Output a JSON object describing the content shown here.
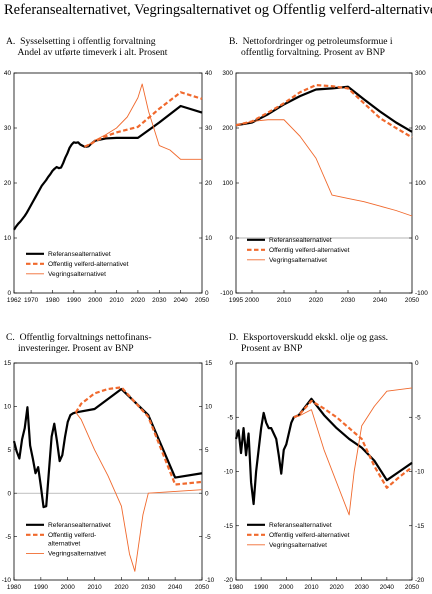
{
  "figure_title": "Referansealternativet, Vegringsalternativet og Offentlig velferd-alternativet",
  "colors": {
    "ref": "#000000",
    "velferd": "#f0692d",
    "vegring": "#f0692d",
    "zero": "#9a9a9a"
  },
  "legend_labels": {
    "ref": "Referansealternativet",
    "velferd": "Offentlig velferd-alternativet",
    "vegring": "Vegringsalternativet"
  },
  "panels": [
    {
      "title_lines": [
        "A.  Sysselsetting i offentlig forvaltning",
        "     Andel av utførte timeverk i alt. Prosent"
      ]
    },
    {
      "title_lines": [
        "B.  Nettofordringer og petroleumsformue i",
        "     offentlig forvaltning. Prosent av BNP"
      ]
    },
    {
      "title_lines": [
        "C.  Offentlig forvaltnings nettofinans-",
        "     investeringer. Prosent av BNP"
      ]
    },
    {
      "title_lines": [
        "D.  Eksportoverskudd ekskl. olje og gass.",
        "     Prosent av BNP"
      ]
    }
  ],
  "chart_data": [
    {
      "type": "line",
      "title": "A. Sysselsetting i offentlig forvaltning. Andel av utførte timeverk i alt. Prosent",
      "xlim": [
        1962,
        2050
      ],
      "ylim": [
        0,
        40
      ],
      "xticks": [
        1962,
        1970,
        1980,
        1990,
        2000,
        2010,
        2020,
        2030,
        2040,
        2050
      ],
      "xtick_labels": [
        "1962",
        "1970",
        "1980",
        "1990",
        "2000",
        "2010",
        "2020",
        "2030",
        "2040",
        "2050"
      ],
      "yticks": [
        0,
        10,
        20,
        30,
        40
      ],
      "right_axis": true,
      "zero_line": false,
      "legend_lines": [
        "Referansealternativet",
        "Offentlig velferd-alternativet",
        "Vegringsalternativet"
      ],
      "series": [
        {
          "name": "Referansealternativet",
          "key": "ref",
          "x": [
            1962,
            1963,
            1964,
            1965,
            1966,
            1967,
            1968,
            1969,
            1970,
            1971,
            1972,
            1973,
            1974,
            1975,
            1976,
            1977,
            1978,
            1979,
            1980,
            1981,
            1982,
            1983,
            1984,
            1985,
            1986,
            1987,
            1988,
            1989,
            1990,
            1991,
            1992,
            1993,
            1994,
            1995,
            1996,
            1997,
            1998,
            1999,
            2000,
            2005,
            2010,
            2020,
            2030,
            2040,
            2050
          ],
          "y": [
            11.5,
            12.1,
            12.6,
            13.0,
            13.5,
            14.0,
            14.6,
            15.3,
            16.0,
            16.7,
            17.4,
            18.1,
            18.8,
            19.5,
            20.0,
            20.5,
            21.1,
            21.6,
            22.2,
            22.6,
            22.9,
            22.7,
            22.8,
            23.6,
            24.6,
            25.4,
            26.4,
            27.0,
            27.4,
            27.3,
            27.4,
            27.0,
            26.8,
            26.6,
            26.6,
            26.7,
            27.1,
            27.4,
            27.7,
            28.1,
            28.2,
            28.2,
            31.0,
            34.0,
            32.8
          ]
        },
        {
          "name": "Offentlig velferd-alternativet",
          "key": "velferd",
          "x": [
            1995,
            1998,
            2000,
            2005,
            2010,
            2020,
            2030,
            2040,
            2050
          ],
          "y": [
            26.6,
            27.1,
            27.6,
            28.5,
            29.2,
            30.2,
            33.5,
            36.5,
            35.3
          ]
        },
        {
          "name": "Vegringsalternativet",
          "key": "vegring",
          "x": [
            1995,
            1998,
            2000,
            2005,
            2010,
            2015,
            2020,
            2022,
            2025,
            2030,
            2035,
            2040,
            2050
          ],
          "y": [
            26.6,
            27.2,
            27.8,
            28.8,
            30.0,
            32.0,
            35.5,
            38.0,
            33.0,
            26.8,
            26.0,
            24.3,
            24.3
          ]
        }
      ]
    },
    {
      "type": "line",
      "title": "B. Nettofordringer og petroleumsformue i offentlig forvaltning. Prosent av BNP",
      "xlim": [
        1995,
        2050
      ],
      "ylim": [
        -100,
        300
      ],
      "xticks": [
        1995,
        2000,
        2010,
        2020,
        2030,
        2040,
        2050
      ],
      "xtick_labels": [
        "1995",
        "2000",
        "2010",
        "2020",
        "2030",
        "2040",
        "2050"
      ],
      "yticks": [
        -100,
        0,
        100,
        200,
        300
      ],
      "right_axis": true,
      "zero_line": true,
      "legend_lines": [
        "Referansealternativet",
        "Offentlig velferd-alternativet",
        "Vegringsalternativet"
      ],
      "series": [
        {
          "name": "Referansealternativet",
          "key": "ref",
          "x": [
            1995,
            2000,
            2005,
            2010,
            2015,
            2020,
            2025,
            2030,
            2035,
            2040,
            2045,
            2050
          ],
          "y": [
            205,
            210,
            225,
            243,
            258,
            270,
            272,
            275,
            252,
            230,
            210,
            193
          ]
        },
        {
          "name": "Offentlig velferd-alternativet",
          "key": "velferd",
          "x": [
            1995,
            2000,
            2005,
            2010,
            2015,
            2020,
            2025,
            2030,
            2035,
            2040,
            2045,
            2050
          ],
          "y": [
            205,
            212,
            228,
            245,
            265,
            278,
            276,
            272,
            245,
            218,
            200,
            183
          ]
        },
        {
          "name": "Vegringsalternativet",
          "key": "vegring",
          "x": [
            1995,
            2000,
            2005,
            2010,
            2015,
            2020,
            2025,
            2030,
            2035,
            2040,
            2045,
            2050
          ],
          "y": [
            205,
            212,
            215,
            215,
            185,
            145,
            78,
            72,
            66,
            58,
            50,
            40
          ]
        }
      ]
    },
    {
      "type": "line",
      "title": "C. Offentlig forvaltnings nettofinans-investeringer. Prosent av BNP",
      "xlim": [
        1980,
        2050
      ],
      "ylim": [
        -10,
        15
      ],
      "xticks": [
        1980,
        1990,
        2000,
        2010,
        2020,
        2030,
        2040,
        2050
      ],
      "xtick_labels": [
        "1980",
        "1990",
        "2000",
        "2010",
        "2020",
        "2030",
        "2040",
        "2050"
      ],
      "yticks": [
        -10,
        -5,
        0,
        5,
        10,
        15
      ],
      "right_axis": true,
      "zero_line": true,
      "legend_lines": [
        "Referansealternativet",
        "Offentlig velferd-",
        "alternativet",
        "Vegringsalternativet"
      ],
      "series": [
        {
          "name": "Referansealternativet",
          "key": "ref",
          "x": [
            1980,
            1981,
            1982,
            1983,
            1984,
            1985,
            1986,
            1987,
            1988,
            1989,
            1990,
            1991,
            1992,
            1993,
            1994,
            1995,
            1996,
            1997,
            1998,
            1999,
            2000,
            2001,
            2002,
            2003,
            2010,
            2020,
            2030,
            2040,
            2050
          ],
          "y": [
            6.0,
            4.8,
            4.0,
            6.2,
            7.5,
            9.9,
            5.5,
            4.0,
            2.3,
            3.0,
            0.8,
            -1.6,
            -1.5,
            2.5,
            6.5,
            8.0,
            6.0,
            3.7,
            4.4,
            6.5,
            8.2,
            9.0,
            9.2,
            9.3,
            9.7,
            12.0,
            9.0,
            1.8,
            2.3
          ]
        },
        {
          "name": "Offentlig velferd-alternativet",
          "key": "velferd",
          "x": [
            2003,
            2005,
            2010,
            2015,
            2020,
            2030,
            2040,
            2050
          ],
          "y": [
            9.3,
            10.3,
            11.5,
            12.0,
            12.2,
            8.8,
            1.0,
            1.3
          ]
        },
        {
          "name": "Vegringsalternativet",
          "key": "vegring",
          "x": [
            2003,
            2005,
            2010,
            2015,
            2020,
            2023,
            2025,
            2028,
            2030,
            2040,
            2050
          ],
          "y": [
            9.3,
            8.5,
            5.0,
            2.0,
            -1.5,
            -7.0,
            -9.0,
            -2.5,
            0.0,
            0.2,
            0.4
          ]
        }
      ]
    },
    {
      "type": "line",
      "title": "D. Eksportoverskudd ekskl. olje og gass. Prosent av BNP",
      "xlim": [
        1980,
        2050
      ],
      "ylim": [
        -20,
        0
      ],
      "xticks": [
        1980,
        1990,
        2000,
        2010,
        2020,
        2030,
        2040,
        2050
      ],
      "xtick_labels": [
        "1980",
        "1990",
        "2000",
        "2010",
        "2020",
        "2030",
        "2040",
        "2050"
      ],
      "yticks": [
        -20,
        -15,
        -10,
        -5,
        0
      ],
      "right_axis": true,
      "zero_line": false,
      "legend_lines": [
        "Referansealternativet",
        "Offentlig velferd-alternativet",
        "Vegringsalternativet"
      ],
      "series": [
        {
          "name": "Referansealternativet",
          "key": "ref",
          "x": [
            1980,
            1981,
            1982,
            1983,
            1984,
            1985,
            1986,
            1987,
            1988,
            1989,
            1990,
            1991,
            1992,
            1993,
            1994,
            1995,
            1996,
            1997,
            1998,
            1999,
            2000,
            2001,
            2002,
            2003,
            2005,
            2010,
            2015,
            2020,
            2025,
            2030,
            2035,
            2040,
            2045,
            2050
          ],
          "y": [
            -7.0,
            -6.2,
            -8.3,
            -6.0,
            -8.5,
            -6.5,
            -11.0,
            -13.0,
            -10.0,
            -8.0,
            -6.0,
            -4.6,
            -5.5,
            -6.0,
            -6.0,
            -6.5,
            -7.0,
            -8.5,
            -10.2,
            -8.0,
            -7.5,
            -6.5,
            -5.5,
            -5.0,
            -4.8,
            -3.3,
            -4.8,
            -6.0,
            -7.0,
            -7.8,
            -9.0,
            -10.8,
            -10.0,
            -9.2
          ]
        },
        {
          "name": "Offentlig velferd-alternativet",
          "key": "velferd",
          "x": [
            2003,
            2005,
            2010,
            2015,
            2020,
            2025,
            2030,
            2035,
            2040,
            2045,
            2050
          ],
          "y": [
            -5.0,
            -4.8,
            -3.5,
            -4.2,
            -5.0,
            -6.0,
            -7.0,
            -9.5,
            -11.5,
            -10.5,
            -9.6
          ]
        },
        {
          "name": "Vegringsalternativet",
          "key": "vegring",
          "x": [
            2003,
            2005,
            2010,
            2015,
            2020,
            2025,
            2027,
            2030,
            2035,
            2040,
            2050
          ],
          "y": [
            -5.0,
            -4.9,
            -4.3,
            -8.0,
            -11.0,
            -14.0,
            -10.0,
            -5.8,
            -4.0,
            -2.6,
            -2.3
          ]
        }
      ]
    }
  ]
}
